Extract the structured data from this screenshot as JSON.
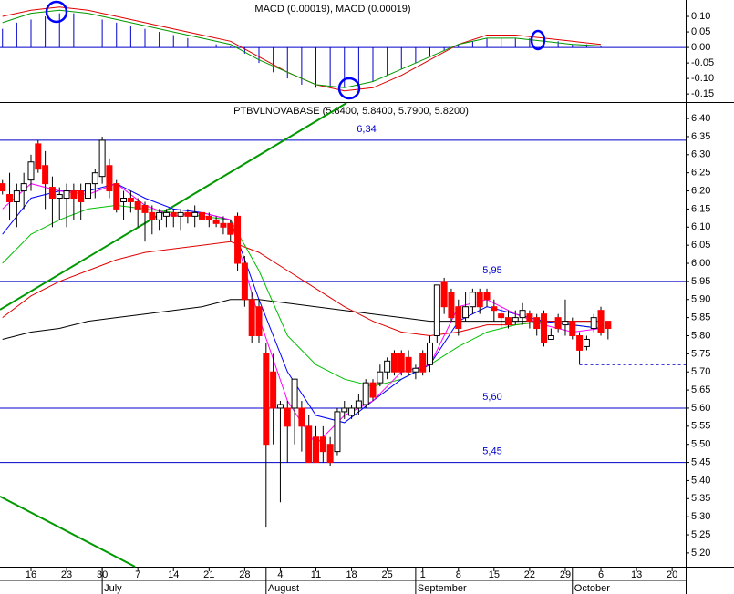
{
  "chart_data": [
    {
      "type": "macd",
      "title": "MACD (0.00019), MACD (0.00019)",
      "xlim": [
        -0.35,
        95.9
      ],
      "ylim": [
        -0.176,
        0.153
      ],
      "yticks": [
        {
          "value": 0.1,
          "label": "0.10"
        },
        {
          "value": 0.05,
          "label": "0.05"
        },
        {
          "value": 0,
          "label": "0.00"
        },
        {
          "value": -0.05,
          "label": "-0.05"
        },
        {
          "value": -0.1,
          "label": "-0.10"
        },
        {
          "value": -0.15,
          "label": "-0.15"
        }
      ],
      "histogram": {
        "color": "#0000cc",
        "x": [
          0,
          2,
          4,
          6,
          8,
          10,
          12,
          14,
          16,
          18,
          20,
          22,
          24,
          26,
          28,
          30,
          32,
          34,
          36,
          38,
          40,
          42,
          44,
          46,
          48,
          50,
          52,
          54,
          56,
          58,
          60,
          62,
          64,
          66,
          68,
          70,
          72,
          74,
          76,
          78,
          80,
          82,
          84
        ],
        "values": [
          0.06,
          0.08,
          0.09,
          0.1,
          0.11,
          0.11,
          0.1,
          0.09,
          0.08,
          0.07,
          0.06,
          0.05,
          0.04,
          0.03,
          0.02,
          0.01,
          0.003,
          -0.02,
          -0.05,
          -0.08,
          -0.1,
          -0.12,
          -0.13,
          -0.13,
          -0.13,
          -0.12,
          -0.11,
          -0.09,
          -0.07,
          -0.05,
          -0.03,
          -0.01,
          0.01,
          0.02,
          0.03,
          0.03,
          0.03,
          0.03,
          0.02,
          0.02,
          0.01,
          0.01,
          0.004
        ]
      },
      "line_x": [
        0,
        4,
        8,
        12,
        16,
        20,
        24,
        28,
        32,
        36,
        40,
        44,
        48,
        52,
        56,
        60,
        64,
        68,
        72,
        76,
        80,
        84
      ],
      "series": [
        {
          "color": "#e00000",
          "values": [
            0.1,
            0.12,
            0.13,
            0.12,
            0.1,
            0.08,
            0.06,
            0.04,
            0.02,
            -0.03,
            -0.08,
            -0.12,
            -0.14,
            -0.13,
            -0.09,
            -0.04,
            0.01,
            0.04,
            0.04,
            0.03,
            0.02,
            0.01
          ]
        },
        {
          "color": "#009900",
          "values": [
            0.08,
            0.11,
            0.12,
            0.11,
            0.09,
            0.07,
            0.05,
            0.03,
            0.01,
            -0.04,
            -0.08,
            -0.12,
            -0.13,
            -0.11,
            -0.07,
            -0.03,
            0.01,
            0.03,
            0.03,
            0.02,
            0.01,
            0.005
          ]
        }
      ]
    },
    {
      "type": "candlestick",
      "title": "PTBVLNOVABASE (5.8400, 5.8400, 5.7900, 5.8200)",
      "xlim": [
        -0.35,
        95.9
      ],
      "ylim": [
        5.162,
        6.443
      ],
      "yticks": [
        {
          "value": 6.4,
          "label": "6.40"
        },
        {
          "value": 6.35,
          "label": "6.35"
        },
        {
          "value": 6.3,
          "label": "6.30"
        },
        {
          "value": 6.25,
          "label": "6.25"
        },
        {
          "value": 6.2,
          "label": "6.20"
        },
        {
          "value": 6.15,
          "label": "6.15"
        },
        {
          "value": 6.1,
          "label": "6.10"
        },
        {
          "value": 6.05,
          "label": "6.05"
        },
        {
          "value": 6,
          "label": "6.00"
        },
        {
          "value": 5.95,
          "label": "5.95"
        },
        {
          "value": 5.9,
          "label": "5.90"
        },
        {
          "value": 5.85,
          "label": "5.85"
        },
        {
          "value": 5.8,
          "label": "5.80"
        },
        {
          "value": 5.75,
          "label": "5.75"
        },
        {
          "value": 5.7,
          "label": "5.70"
        },
        {
          "value": 5.65,
          "label": "5.65"
        },
        {
          "value": 5.6,
          "label": "5.60"
        },
        {
          "value": 5.55,
          "label": "5.55"
        },
        {
          "value": 5.5,
          "label": "5.50"
        },
        {
          "value": 5.45,
          "label": "5.45"
        },
        {
          "value": 5.4,
          "label": "5.40"
        },
        {
          "value": 5.35,
          "label": "5.35"
        },
        {
          "value": 5.3,
          "label": "5.30"
        },
        {
          "value": 5.25,
          "label": "5.25"
        },
        {
          "value": 5.2,
          "label": "5.20"
        }
      ],
      "xticks": [
        {
          "value": 4,
          "label": "16"
        },
        {
          "value": 9,
          "label": "23"
        },
        {
          "value": 14,
          "label": "30"
        },
        {
          "value": 19,
          "label": "7"
        },
        {
          "value": 24,
          "label": "14"
        },
        {
          "value": 29,
          "label": "21"
        },
        {
          "value": 34,
          "label": "28"
        },
        {
          "value": 39,
          "label": "4"
        },
        {
          "value": 44,
          "label": "11"
        },
        {
          "value": 49,
          "label": "18"
        },
        {
          "value": 54,
          "label": "25"
        },
        {
          "value": 59,
          "label": "1"
        },
        {
          "value": 64,
          "label": "8"
        },
        {
          "value": 69,
          "label": "15"
        },
        {
          "value": 74,
          "label": "22"
        },
        {
          "value": 79,
          "label": "29"
        },
        {
          "value": 84,
          "label": "6"
        },
        {
          "value": 89,
          "label": "13"
        },
        {
          "value": 94,
          "label": "20"
        }
      ],
      "months": [
        {
          "value": 14,
          "label": "July"
        },
        {
          "value": 37,
          "label": "August"
        },
        {
          "value": 58,
          "label": "September"
        },
        {
          "value": 80,
          "label": "October"
        }
      ],
      "up_color": "#ffffff",
      "down_color": "#ff0000",
      "candles": {
        "x": [
          0,
          1,
          2,
          3,
          4,
          5,
          6,
          7,
          8,
          9,
          10,
          11,
          12,
          13,
          14,
          15,
          16,
          17,
          18,
          19,
          20,
          21,
          22,
          23,
          24,
          25,
          26,
          27,
          28,
          29,
          30,
          31,
          32,
          33,
          34,
          35,
          36,
          37,
          38,
          39,
          40,
          41,
          42,
          43,
          44,
          45,
          46,
          47,
          48,
          49,
          50,
          51,
          52,
          53,
          54,
          55,
          56,
          57,
          58,
          59,
          60,
          61,
          62,
          63,
          64,
          65,
          66,
          67,
          68,
          69,
          70,
          71,
          72,
          73,
          74,
          75,
          76,
          77,
          78,
          79,
          80,
          81,
          82,
          83,
          84,
          85
        ],
        "open": [
          6.22,
          6.19,
          6.17,
          6.2,
          6.23,
          6.33,
          6.27,
          6.21,
          6.18,
          6.18,
          6.2,
          6.2,
          6.18,
          6.22,
          6.24,
          6.27,
          6.22,
          6.17,
          6.18,
          6.17,
          6.16,
          6.14,
          6.12,
          6.13,
          6.14,
          6.13,
          6.14,
          6.13,
          6.14,
          6.13,
          6.12,
          6.11,
          6.11,
          6.13,
          6.0,
          5.9,
          5.88,
          5.75,
          5.7,
          5.6,
          5.6,
          5.6,
          5.6,
          5.55,
          5.52,
          5.52,
          5.5,
          5.48,
          5.59,
          5.58,
          5.6,
          5.61,
          5.67,
          5.67,
          5.7,
          5.75,
          5.75,
          5.74,
          5.7,
          5.75,
          5.72,
          5.8,
          5.95,
          5.92,
          5.88,
          5.85,
          5.88,
          5.92,
          5.92,
          5.88,
          5.86,
          5.85,
          5.84,
          5.85,
          5.86,
          5.85,
          5.86,
          5.79,
          5.85,
          5.83,
          5.84,
          5.8,
          5.77,
          5.82,
          5.87,
          5.84
        ],
        "high": [
          6.23,
          6.25,
          6.22,
          6.25,
          6.3,
          6.34,
          6.31,
          6.24,
          6.21,
          6.22,
          6.22,
          6.22,
          6.24,
          6.26,
          6.35,
          6.29,
          6.23,
          6.2,
          6.2,
          6.18,
          6.17,
          6.16,
          6.15,
          6.15,
          6.15,
          6.15,
          6.15,
          6.16,
          6.15,
          6.14,
          6.13,
          6.13,
          6.12,
          6.14,
          6.02,
          5.92,
          5.9,
          5.78,
          5.75,
          5.62,
          5.62,
          5.68,
          5.62,
          5.58,
          5.55,
          5.55,
          5.52,
          5.6,
          5.62,
          5.61,
          5.64,
          5.68,
          5.68,
          5.72,
          5.74,
          5.76,
          5.76,
          5.76,
          5.72,
          5.76,
          5.8,
          5.94,
          5.96,
          5.93,
          5.9,
          5.92,
          5.93,
          5.93,
          5.93,
          5.9,
          5.88,
          5.87,
          5.87,
          5.89,
          5.87,
          5.86,
          5.87,
          5.82,
          5.86,
          5.9,
          5.85,
          5.81,
          5.8,
          5.86,
          5.88,
          5.84
        ],
        "low": [
          6.19,
          6.12,
          6.1,
          6.15,
          6.2,
          6.25,
          6.15,
          6.1,
          6.12,
          6.1,
          6.12,
          6.12,
          6.14,
          6.18,
          6.22,
          6.18,
          6.14,
          6.12,
          6.14,
          6.1,
          6.06,
          6.08,
          6.09,
          6.1,
          6.1,
          6.09,
          6.11,
          6.1,
          6.11,
          6.1,
          6.1,
          6.08,
          6.06,
          5.98,
          5.88,
          5.78,
          5.78,
          5.27,
          5.5,
          5.34,
          5.45,
          5.5,
          5.48,
          5.45,
          5.45,
          5.45,
          5.44,
          5.47,
          5.57,
          5.57,
          5.58,
          5.6,
          5.62,
          5.66,
          5.68,
          5.69,
          5.69,
          5.69,
          5.68,
          5.69,
          5.7,
          5.78,
          5.86,
          5.84,
          5.8,
          5.84,
          5.86,
          5.86,
          5.88,
          5.84,
          5.82,
          5.82,
          5.83,
          5.83,
          5.82,
          5.8,
          5.77,
          5.79,
          5.81,
          5.8,
          5.79,
          5.72,
          5.76,
          5.81,
          5.8,
          5.79
        ],
        "close": [
          6.2,
          6.17,
          6.2,
          6.22,
          6.28,
          6.26,
          6.22,
          6.18,
          6.19,
          6.2,
          6.18,
          6.17,
          6.22,
          6.25,
          6.34,
          6.2,
          6.15,
          6.18,
          6.17,
          6.15,
          6.14,
          6.12,
          6.14,
          6.14,
          6.13,
          6.14,
          6.13,
          6.14,
          6.12,
          6.12,
          6.11,
          6.1,
          6.08,
          6.0,
          5.9,
          5.8,
          5.8,
          5.5,
          5.6,
          5.61,
          5.55,
          5.68,
          5.55,
          5.45,
          5.45,
          5.48,
          5.45,
          5.59,
          5.6,
          5.6,
          5.62,
          5.67,
          5.63,
          5.7,
          5.73,
          5.7,
          5.7,
          5.7,
          5.71,
          5.7,
          5.78,
          5.94,
          5.88,
          5.85,
          5.82,
          5.88,
          5.92,
          5.88,
          5.9,
          5.87,
          5.85,
          5.83,
          5.85,
          5.87,
          5.84,
          5.82,
          5.78,
          5.8,
          5.82,
          5.84,
          5.8,
          5.76,
          5.79,
          5.85,
          5.81,
          5.82
        ]
      },
      "line_x": [
        0,
        4,
        8,
        12,
        16,
        20,
        24,
        28,
        32,
        36,
        40,
        44,
        48,
        52,
        56,
        60,
        64,
        68,
        72,
        76,
        80,
        84
      ],
      "series": [
        {
          "color": "#000000",
          "values": [
            5.79,
            5.81,
            5.82,
            5.84,
            5.85,
            5.86,
            5.87,
            5.88,
            5.9,
            5.9,
            5.89,
            5.88,
            5.87,
            5.86,
            5.85,
            5.84,
            5.84,
            5.84,
            5.84,
            5.84,
            5.84,
            5.84
          ]
        },
        {
          "color": "#e00000",
          "values": [
            5.85,
            5.91,
            5.95,
            5.98,
            6.01,
            6.03,
            6.04,
            6.05,
            6.06,
            6.03,
            5.98,
            5.93,
            5.88,
            5.84,
            5.81,
            5.8,
            5.81,
            5.83,
            5.83,
            5.84,
            5.84,
            5.84
          ]
        },
        {
          "color": "#00c000",
          "values": [
            6.0,
            6.08,
            6.12,
            6.15,
            6.16,
            6.15,
            6.14,
            6.13,
            6.12,
            5.98,
            5.8,
            5.72,
            5.68,
            5.66,
            5.68,
            5.72,
            5.77,
            5.81,
            5.83,
            5.84,
            5.83,
            5.82
          ]
        },
        {
          "color": "#0000ff",
          "values": [
            6.08,
            6.18,
            6.2,
            6.2,
            6.22,
            6.18,
            6.15,
            6.14,
            6.12,
            5.9,
            5.7,
            5.58,
            5.56,
            5.62,
            5.68,
            5.72,
            5.84,
            5.88,
            5.86,
            5.84,
            5.83,
            5.82
          ]
        },
        {
          "color": "#ff00ff",
          "values": [
            6.15,
            6.22,
            6.2,
            6.19,
            6.22,
            6.16,
            6.13,
            6.14,
            6.12,
            5.85,
            5.62,
            5.5,
            5.58,
            5.62,
            5.7,
            5.72,
            5.88,
            5.9,
            5.86,
            5.83,
            5.81,
            5.82
          ]
        }
      ],
      "trendlines": [
        {
          "color": "#009900",
          "x": [
            -0.35,
            48.3
          ],
          "values": [
            5.872,
            6.443
          ]
        },
        {
          "color": "#009900",
          "x": [
            -0.35,
            18.6
          ],
          "values": [
            5.356,
            5.162
          ]
        }
      ],
      "levels": [
        {
          "value": 6.34,
          "label": "6,34"
        },
        {
          "value": 5.95,
          "label": "5,95"
        },
        {
          "value": 5.6,
          "label": "5,60"
        },
        {
          "value": 5.45,
          "label": "5,45"
        }
      ],
      "level_color": "#0000cc",
      "support": {
        "x": [
          81,
          95.9
        ],
        "value": 5.72
      }
    }
  ]
}
